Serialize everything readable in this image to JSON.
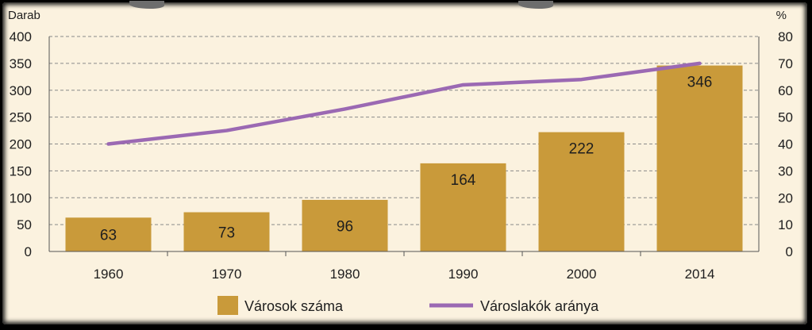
{
  "chart_data": {
    "type": "bar",
    "categories": [
      "1960",
      "1970",
      "1980",
      "1990",
      "2000",
      "2014"
    ],
    "left_axis": {
      "unit": "Darab",
      "ylim": [
        0,
        400
      ],
      "ticks": [
        "0",
        "50",
        "100",
        "150",
        "200",
        "250",
        "300",
        "350",
        "400"
      ]
    },
    "right_axis": {
      "unit": "%",
      "ylim": [
        0,
        80
      ],
      "ticks": [
        "0",
        "10",
        "20",
        "30",
        "40",
        "50",
        "60",
        "70",
        "80"
      ]
    },
    "series": [
      {
        "name": "Városok száma",
        "type": "bar",
        "axis": "left",
        "values": [
          63,
          73,
          96,
          164,
          222,
          346
        ],
        "color": "#c99a3a"
      },
      {
        "name": "Városlakók aránya",
        "type": "line",
        "axis": "right",
        "values": [
          40,
          45,
          53,
          62,
          64,
          70
        ],
        "color": "#9b69b3"
      }
    ],
    "grid": "dashed-horizontal",
    "legend_position": "bottom"
  }
}
